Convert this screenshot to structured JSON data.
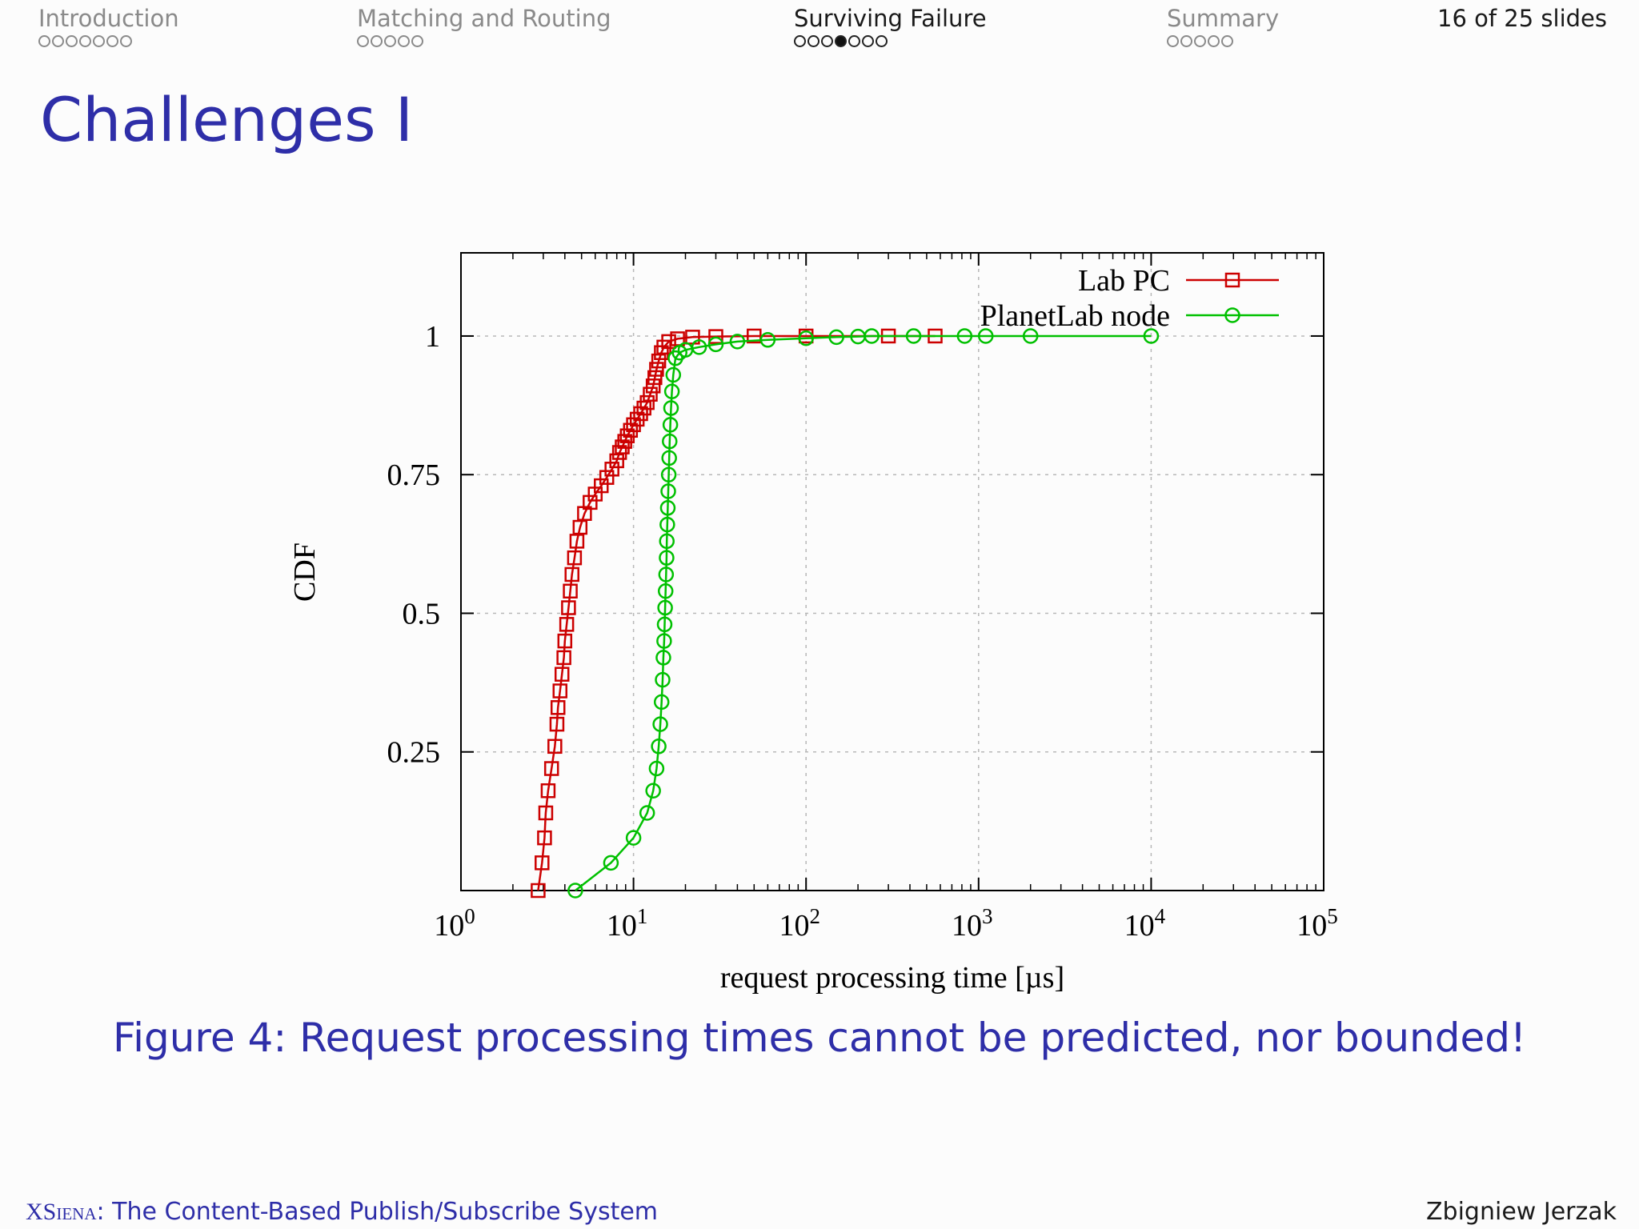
{
  "header": {
    "sections": [
      {
        "label": "Introduction",
        "dots": 7,
        "filled_index": -1,
        "active": false
      },
      {
        "label": "Matching and Routing",
        "dots": 5,
        "filled_index": -1,
        "active": false
      },
      {
        "label": "Surviving Failure",
        "dots": 7,
        "filled_index": 3,
        "active": true
      },
      {
        "label": "Summary",
        "dots": 5,
        "filled_index": -1,
        "active": false
      }
    ],
    "slide_count": "16 of 25 slides"
  },
  "frame_title": "Challenges I",
  "caption": "Figure 4: Request processing times cannot be predicted, nor bounded!",
  "footer": {
    "brand": "XSiena",
    "subtitle": ": The Content-Based Publish/Subscribe System",
    "author": "Zbigniew Jerzak"
  },
  "colors": {
    "title": "#2e2ea8",
    "lab_pc": "#cc0000",
    "planetlab": "#00c000"
  },
  "chart_data": {
    "type": "line",
    "xlabel": "request processing time [µs]",
    "ylabel": "CDF",
    "x_scale": "log",
    "xlim": [
      1,
      100000
    ],
    "ylim": [
      0,
      1.15
    ],
    "x_ticks": [
      1,
      10,
      100,
      1000,
      10000,
      100000
    ],
    "x_tick_labels": [
      {
        "base": "10",
        "exp": "0"
      },
      {
        "base": "10",
        "exp": "1"
      },
      {
        "base": "10",
        "exp": "2"
      },
      {
        "base": "10",
        "exp": "3"
      },
      {
        "base": "10",
        "exp": "4"
      },
      {
        "base": "10",
        "exp": "5"
      }
    ],
    "y_ticks": [
      0.25,
      0.5,
      0.75,
      1
    ],
    "y_tick_labels": [
      "0.25",
      "0.5",
      "0.75",
      "1"
    ],
    "grid": true,
    "legend_position": "top-right",
    "series": [
      {
        "name": "Lab PC",
        "color": "#cc0000",
        "marker": "square",
        "x": [
          2.8,
          2.95,
          3.05,
          3.1,
          3.2,
          3.35,
          3.5,
          3.6,
          3.65,
          3.75,
          3.85,
          3.95,
          4.0,
          4.1,
          4.2,
          4.3,
          4.4,
          4.55,
          4.7,
          4.9,
          5.2,
          5.6,
          6.0,
          6.5,
          7.0,
          7.5,
          8.0,
          8.3,
          8.6,
          8.9,
          9.2,
          9.6,
          10.0,
          10.5,
          11.0,
          11.5,
          12.0,
          12.5,
          13.0,
          13.3,
          13.6,
          14.0,
          14.5,
          15.0,
          16.0,
          18.0,
          22.0,
          30.0,
          50.0,
          100.0,
          300.0,
          560.0
        ],
        "y": [
          0.0,
          0.05,
          0.095,
          0.14,
          0.18,
          0.22,
          0.26,
          0.3,
          0.33,
          0.36,
          0.39,
          0.42,
          0.45,
          0.48,
          0.51,
          0.54,
          0.57,
          0.6,
          0.63,
          0.655,
          0.68,
          0.7,
          0.715,
          0.73,
          0.745,
          0.76,
          0.775,
          0.79,
          0.8,
          0.81,
          0.82,
          0.83,
          0.84,
          0.85,
          0.86,
          0.87,
          0.88,
          0.895,
          0.91,
          0.925,
          0.94,
          0.955,
          0.97,
          0.98,
          0.99,
          0.995,
          0.998,
          0.999,
          1.0,
          1.0,
          1.0,
          1.0
        ]
      },
      {
        "name": "PlanetLab node",
        "color": "#00c000",
        "marker": "circle",
        "x": [
          4.6,
          7.4,
          10.0,
          12.0,
          13.0,
          13.6,
          14.0,
          14.3,
          14.55,
          14.75,
          14.9,
          15.05,
          15.15,
          15.25,
          15.35,
          15.45,
          15.55,
          15.6,
          15.7,
          15.8,
          15.9,
          16.0,
          16.1,
          16.2,
          16.35,
          16.5,
          16.7,
          17.0,
          17.5,
          18.5,
          20.0,
          24.0,
          30.0,
          40.0,
          60.0,
          100.0,
          150.0,
          200.0,
          240.0,
          420.0,
          830.0,
          1100.0,
          2000.0,
          10000.0
        ],
        "y": [
          0.0,
          0.05,
          0.095,
          0.14,
          0.18,
          0.22,
          0.26,
          0.3,
          0.34,
          0.38,
          0.42,
          0.45,
          0.48,
          0.51,
          0.54,
          0.57,
          0.6,
          0.63,
          0.66,
          0.69,
          0.72,
          0.75,
          0.78,
          0.81,
          0.84,
          0.87,
          0.9,
          0.93,
          0.96,
          0.97,
          0.975,
          0.98,
          0.985,
          0.99,
          0.993,
          0.996,
          0.998,
          0.999,
          1.0,
          1.0,
          1.0,
          1.0,
          1.0,
          1.0
        ]
      }
    ]
  }
}
